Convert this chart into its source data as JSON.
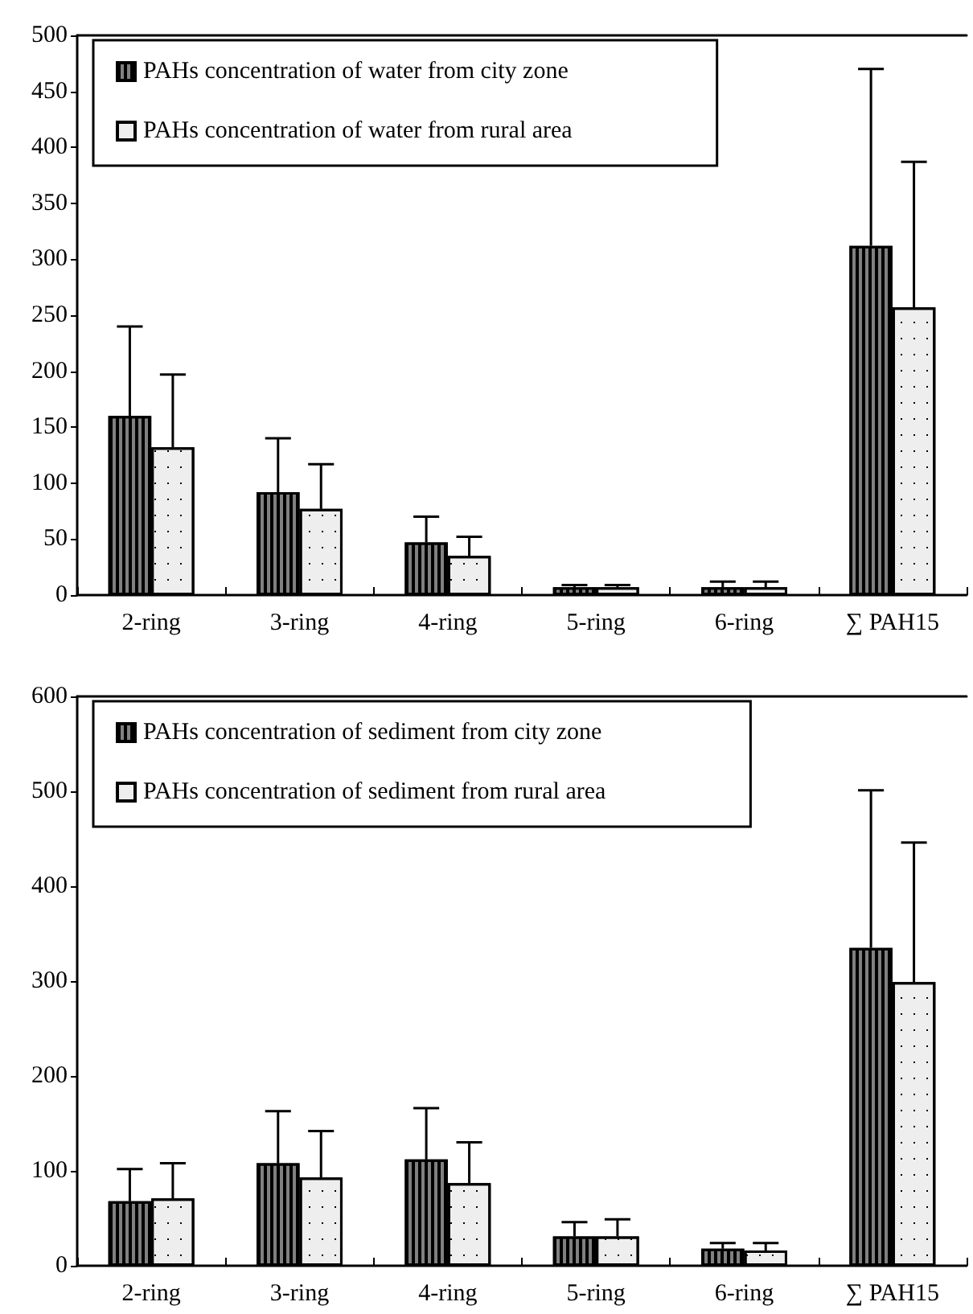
{
  "chart_data": [
    {
      "type": "bar",
      "categories": [
        "2-ring",
        "3-ring",
        "4-ring",
        "5-ring",
        "6-ring",
        "∑ PAH15"
      ],
      "ylim": [
        0,
        500
      ],
      "yticks": [
        0,
        50,
        100,
        150,
        200,
        250,
        300,
        350,
        400,
        450,
        500
      ],
      "grid": false,
      "legend": "top left",
      "series": [
        {
          "name": "PAHs concentration of water from city zone",
          "color": "#808080",
          "values": [
            160,
            92,
            47,
            7,
            7,
            312
          ],
          "errors": [
            [
              160,
              240
            ],
            [
              92,
              140
            ],
            [
              47,
              70
            ],
            [
              7,
              9
            ],
            [
              7,
              12
            ],
            [
              312,
              470
            ]
          ]
        },
        {
          "name": "PAHs concentration of water from rural area",
          "color": "#eeeeee",
          "values": [
            132,
            77,
            35,
            7,
            7,
            257
          ],
          "errors": [
            [
              132,
              197
            ],
            [
              77,
              117
            ],
            [
              35,
              52
            ],
            [
              7,
              9
            ],
            [
              7,
              12
            ],
            [
              257,
              387
            ]
          ]
        }
      ]
    },
    {
      "type": "bar",
      "categories": [
        "2-ring",
        "3-ring",
        "4-ring",
        "5-ring",
        "6-ring",
        "∑ PAH15"
      ],
      "ylim": [
        0,
        600
      ],
      "yticks": [
        0,
        100,
        200,
        300,
        400,
        500,
        600
      ],
      "grid": false,
      "legend": "top left",
      "series": [
        {
          "name": "PAHs concentration of sediment from city zone",
          "color": "#808080",
          "values": [
            68,
            108,
            112,
            31,
            18,
            335
          ],
          "errors": [
            [
              68,
              102
            ],
            [
              108,
              163
            ],
            [
              112,
              166
            ],
            [
              31,
              46
            ],
            [
              18,
              24
            ],
            [
              335,
              501
            ]
          ]
        },
        {
          "name": "PAHs concentration of sediment from rural area",
          "color": "#eeeeee",
          "values": [
            71,
            93,
            87,
            31,
            16,
            299
          ],
          "errors": [
            [
              71,
              108
            ],
            [
              93,
              142
            ],
            [
              87,
              130
            ],
            [
              31,
              49
            ],
            [
              16,
              24
            ],
            [
              299,
              446
            ]
          ]
        }
      ]
    }
  ]
}
